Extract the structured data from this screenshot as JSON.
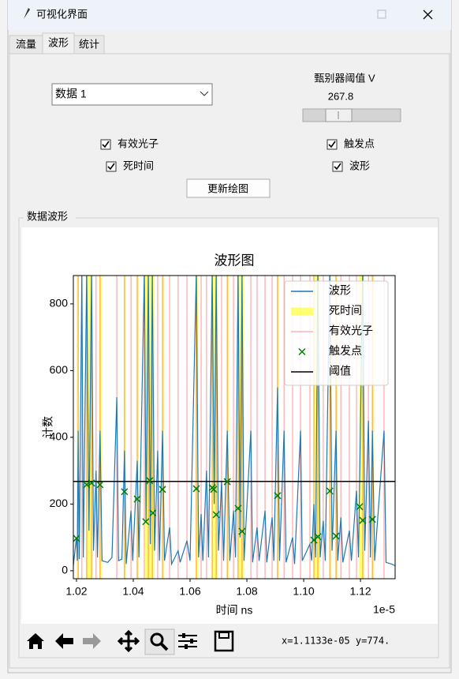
{
  "window": {
    "title": "可视化界面"
  },
  "tabs": [
    "流量",
    "波形",
    "统计"
  ],
  "controls": {
    "dataset": "数据 1",
    "threshold_label": "甄别器阈值 V",
    "threshold_value": "267.8",
    "checkboxes": [
      {
        "label": "有效光子",
        "checked": true
      },
      {
        "label": "死时间",
        "checked": true
      },
      {
        "label": "触发点",
        "checked": true
      },
      {
        "label": "波形",
        "checked": true
      }
    ],
    "button": "更新绘图"
  },
  "group_label": "数据波形",
  "chart_data": {
    "type": "line",
    "title": "波形图",
    "xlabel": "时间 ns",
    "ylabel": "计数",
    "x_offset_label": "1e-5",
    "xlim": [
      1.0189,
      1.1322
    ],
    "ylim": [
      -24,
      885
    ],
    "xticks": [
      1.02,
      1.04,
      1.06,
      1.08,
      {
        "value": 1.1,
        "label": "1.10"
      },
      1.12
    ],
    "yticks": [
      0,
      200,
      400,
      600,
      800
    ],
    "legend": "upper right",
    "series": [
      {
        "name": "波形",
        "color": "#1f77b4",
        "x": [
          1.0189,
          1.02,
          1.0203,
          1.0206,
          1.021,
          1.0219,
          1.0224,
          1.0236,
          1.0244,
          1.0253,
          1.026,
          1.0269,
          1.0274,
          1.0283,
          1.029,
          1.031,
          1.0325,
          1.0342,
          1.0348,
          1.036,
          1.0369,
          1.0375,
          1.0392,
          1.0398,
          1.0414,
          1.042,
          1.0439,
          1.0445,
          1.0453,
          1.046,
          1.0467,
          1.0475,
          1.0486,
          1.0492,
          1.0503,
          1.051,
          1.0528,
          1.0535,
          1.0558,
          1.0565,
          1.0589,
          1.06,
          1.0622,
          1.063,
          1.0639,
          1.0645,
          1.0658,
          1.0665,
          1.0678,
          1.0685,
          1.0692,
          1.07,
          1.0711,
          1.0718,
          1.0731,
          1.074,
          1.0753,
          1.076,
          1.0769,
          1.0776,
          1.0783,
          1.079,
          1.0814,
          1.082,
          1.0836,
          1.0843,
          1.0864,
          1.087,
          1.0889,
          1.0895,
          1.0908,
          1.0915,
          1.0931,
          1.0938,
          1.0961,
          1.0968,
          1.0989,
          1.0995,
          1.1022,
          1.1028,
          1.1036,
          1.1042,
          1.105,
          1.1058,
          1.1069,
          1.1076,
          1.1092,
          1.11,
          1.1114,
          1.112,
          1.1131,
          1.1138,
          1.1161,
          1.1168,
          1.1186,
          1.1193,
          1.1208,
          1.1215,
          1.1228,
          1.1235,
          1.1242,
          1.125,
          1.1283,
          1.129,
          1.131,
          1.1322
        ],
        "values": [
          15,
          100,
          30,
          420,
          35,
          900,
          40,
          900,
          120,
          900,
          60,
          300,
          40,
          420,
          30,
          25,
          40,
          520,
          30,
          35,
          360,
          20,
          180,
          30,
          330,
          40,
          900,
          150,
          900,
          80,
          900,
          60,
          360,
          30,
          420,
          30,
          130,
          20,
          60,
          25,
          90,
          30,
          900,
          40,
          170,
          30,
          300,
          40,
          900,
          200,
          900,
          60,
          270,
          30,
          420,
          30,
          180,
          40,
          900,
          100,
          900,
          30,
          420,
          25,
          130,
          30,
          180,
          25,
          160,
          30,
          550,
          30,
          420,
          25,
          100,
          20,
          420,
          30,
          80,
          30,
          200,
          40,
          900,
          40,
          150,
          30,
          900,
          60,
          420,
          30,
          160,
          25,
          120,
          30,
          240,
          40,
          900,
          60,
          450,
          40,
          420,
          30,
          420,
          25,
          20,
          15
        ]
      }
    ],
    "dead_time": {
      "name": "死时间",
      "color": "#ffff00",
      "spans": [
        [
          1.02,
          1.0208
        ],
        [
          1.0234,
          1.0258
        ],
        [
          1.0281,
          1.0289
        ],
        [
          1.0367,
          1.0375
        ],
        [
          1.0412,
          1.042
        ],
        [
          1.0442,
          1.0475
        ],
        [
          1.0501,
          1.0509
        ],
        [
          1.062,
          1.0628
        ],
        [
          1.0676,
          1.0698
        ],
        [
          1.0729,
          1.0737
        ],
        [
          1.0767,
          1.0789
        ],
        [
          1.0906,
          1.0914
        ],
        [
          1.1034,
          1.1056
        ],
        [
          1.109,
          1.1098
        ],
        [
          1.1112,
          1.112
        ],
        [
          1.1195,
          1.1214
        ],
        [
          1.124,
          1.1248
        ]
      ]
    },
    "photons": {
      "name": "有效光子",
      "color": "#ff0000",
      "x": [
        1.0206,
        1.0219,
        1.0236,
        1.0253,
        1.0269,
        1.0283,
        1.0342,
        1.0369,
        1.0392,
        1.0414,
        1.0439,
        1.0453,
        1.0467,
        1.0486,
        1.0503,
        1.0528,
        1.0558,
        1.0589,
        1.0622,
        1.0639,
        1.0658,
        1.0678,
        1.0692,
        1.0711,
        1.0731,
        1.0753,
        1.0769,
        1.0783,
        1.0814,
        1.0836,
        1.0864,
        1.0889,
        1.0908,
        1.0931,
        1.0961,
        1.0989,
        1.1022,
        1.1036,
        1.105,
        1.1069,
        1.1092,
        1.1114,
        1.1131,
        1.1161,
        1.1186,
        1.1208,
        1.1228,
        1.1242,
        1.1283
      ]
    },
    "triggers": {
      "name": "触发点",
      "color": "#008000",
      "x": [
        1.02,
        1.0236,
        1.0253,
        1.0283,
        1.0369,
        1.0414,
        1.0444,
        1.0458,
        1.0469,
        1.0503,
        1.0622,
        1.0678,
        1.0683,
        1.0692,
        1.0731,
        1.0769,
        1.0783,
        1.0908,
        1.1036,
        1.105,
        1.1092,
        1.1114,
        1.1197,
        1.1208,
        1.1242
      ],
      "values": [
        97,
        258,
        263,
        258,
        237,
        215,
        147,
        270,
        173,
        244,
        246,
        249,
        244,
        168,
        267,
        187,
        118,
        225,
        92,
        102,
        239,
        104,
        192,
        151,
        154
      ]
    },
    "threshold": {
      "name": "阈值",
      "color": "#000000",
      "value": 267.8
    }
  },
  "status": "x=1.1133e-05 y=774."
}
